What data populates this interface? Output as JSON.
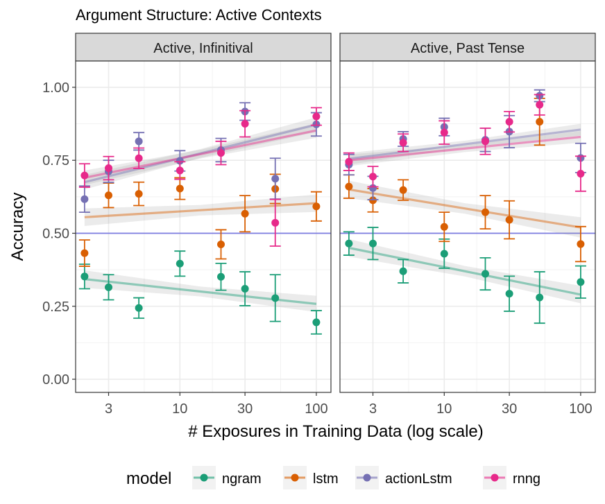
{
  "chart_data": {
    "type": "scatter",
    "title": "Argument Structure: Active Contexts",
    "xlabel": "# Exposures in Training Data (log scale)",
    "ylabel": "Accuracy",
    "x_scale": "log",
    "xlim": [
      1.72,
      128
    ],
    "ylim": [
      -0.045,
      1.09
    ],
    "x_ticks": [
      3,
      10,
      30,
      100
    ],
    "x_tick_labels": [
      "3",
      "10",
      "30",
      "100"
    ],
    "y_ticks": [
      0,
      0.25,
      0.5,
      0.75,
      1.0
    ],
    "y_tick_labels": [
      "0.00",
      "0.25",
      "0.50",
      "0.75",
      "1.00"
    ],
    "hline": 0.5,
    "hline_color": "#7b7be0",
    "legend": {
      "title": "model",
      "position": "bottom"
    },
    "series_info": [
      {
        "name": "ngram",
        "color": "#1b9e77"
      },
      {
        "name": "lstm",
        "color": "#d95f02"
      },
      {
        "name": "actionLstm",
        "color": "#7570b3"
      },
      {
        "name": "rnng",
        "color": "#e7298a"
      }
    ],
    "facets": [
      {
        "label": "Active, Infinitival",
        "x": [
          2,
          3,
          5,
          10,
          20,
          30,
          50,
          100
        ],
        "series": [
          {
            "name": "ngram",
            "y": [
              0.352,
              0.315,
              0.244,
              0.396,
              0.351,
              0.31,
              0.278,
              0.195
            ],
            "err": [
              0.042,
              0.043,
              0.035,
              0.043,
              0.046,
              0.058,
              0.08,
              0.04
            ],
            "fit": [
              0.343,
              0.258
            ],
            "fit_se": [
              0.03,
              0.028
            ]
          },
          {
            "name": "lstm",
            "y": [
              0.432,
              0.63,
              0.635,
              0.653,
              0.462,
              0.567,
              0.652,
              0.592
            ],
            "err": [
              0.045,
              0.042,
              0.04,
              0.037,
              0.05,
              0.062,
              0.05,
              0.05
            ],
            "fit": [
              0.555,
              0.603
            ],
            "fit_se": [
              0.03,
              0.03
            ]
          },
          {
            "name": "actionLstm",
            "y": [
              0.617,
              0.712,
              0.815,
              0.748,
              0.785,
              0.917,
              0.687,
              0.873
            ],
            "err": [
              0.045,
              0.038,
              0.03,
              0.035,
              0.04,
              0.03,
              0.07,
              0.04
            ],
            "fit": [
              0.675,
              0.872
            ],
            "fit_se": [
              0.025,
              0.025
            ]
          },
          {
            "name": "rnng",
            "y": [
              0.698,
              0.723,
              0.757,
              0.715,
              0.775,
              0.875,
              0.536,
              0.9
            ],
            "err": [
              0.04,
              0.04,
              0.035,
              0.03,
              0.04,
              0.045,
              0.08,
              0.03
            ],
            "fit": [
              0.69,
              0.852
            ],
            "fit_se": [
              0.025,
              0.025
            ]
          }
        ]
      },
      {
        "label": "Active, Past Tense",
        "x": [
          2,
          3,
          5,
          10,
          20,
          30,
          50,
          100
        ],
        "series": [
          {
            "name": "ngram",
            "y": [
              0.465,
              0.465,
              0.37,
              0.43,
              0.361,
              0.293,
              0.28,
              0.333
            ],
            "err": [
              0.04,
              0.055,
              0.04,
              0.05,
              0.055,
              0.06,
              0.088,
              0.055
            ],
            "fit": [
              0.45,
              0.29
            ],
            "fit_se": [
              0.03,
              0.03
            ]
          },
          {
            "name": "lstm",
            "y": [
              0.66,
              0.613,
              0.648,
              0.522,
              0.572,
              0.546,
              0.882,
              0.463
            ],
            "err": [
              0.04,
              0.04,
              0.035,
              0.05,
              0.057,
              0.065,
              0.08,
              0.06
            ],
            "fit": [
              0.65,
              0.52
            ],
            "fit_se": [
              0.03,
              0.035
            ]
          },
          {
            "name": "actionLstm",
            "y": [
              0.735,
              0.655,
              0.823,
              0.864,
              0.82,
              0.848,
              0.971,
              0.758
            ],
            "err": [
              0.035,
              0.04,
              0.025,
              0.03,
              0.04,
              0.055,
              0.02,
              0.05
            ],
            "fit": [
              0.755,
              0.855
            ],
            "fit_se": [
              0.02,
              0.02
            ]
          },
          {
            "name": "rnng",
            "y": [
              0.745,
              0.694,
              0.81,
              0.845,
              0.815,
              0.882,
              0.94,
              0.704
            ],
            "err": [
              0.03,
              0.035,
              0.03,
              0.04,
              0.045,
              0.035,
              0.035,
              0.06
            ],
            "fit": [
              0.75,
              0.83
            ],
            "fit_se": [
              0.02,
              0.02
            ]
          }
        ]
      }
    ]
  }
}
